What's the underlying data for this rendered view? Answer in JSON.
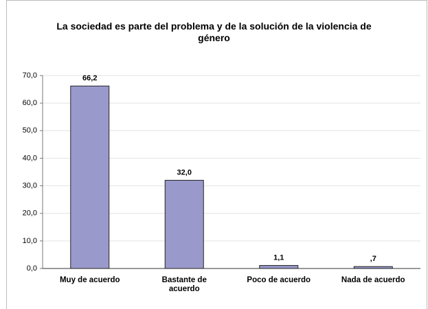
{
  "chart_data": {
    "type": "bar",
    "title": "La sociedad es parte del problema y de la solución de la violencia de género",
    "categories": [
      "Muy de acuerdo",
      "Bastante de acuerdo",
      "Poco de acuerdo",
      "Nada de acuerdo"
    ],
    "values": [
      66.2,
      32.0,
      1.1,
      0.7
    ],
    "value_labels": [
      "66,2",
      "32,0",
      "1,1",
      ",7"
    ],
    "color": "#9999cc",
    "ylim": [
      0,
      70
    ],
    "yticks": [
      {
        "value": 0,
        "label": "0,0"
      },
      {
        "value": 10,
        "label": "10,0"
      },
      {
        "value": 20,
        "label": "20,0"
      },
      {
        "value": 30,
        "label": "30,0"
      },
      {
        "value": 40,
        "label": "40,0"
      },
      {
        "value": 50,
        "label": "50,0"
      },
      {
        "value": 60,
        "label": "60,0"
      },
      {
        "value": 70,
        "label": "70,0"
      }
    ],
    "grid": true
  }
}
